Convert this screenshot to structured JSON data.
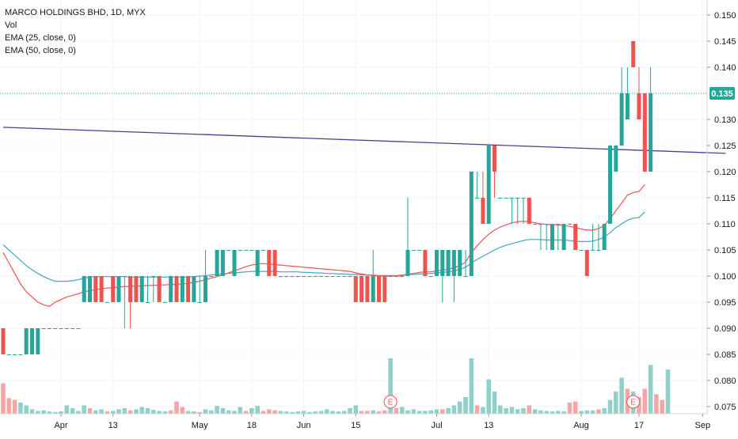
{
  "legend": {
    "title": "MARCO HOLDINGS BHD, 1D, MYX",
    "vol": "Vol",
    "ema25": "EMA (25, close, 0)",
    "ema50": "EMA (50, close, 0)"
  },
  "colors": {
    "up": "#26a69a",
    "down": "#ef5350",
    "vol_up": "#8fd0c8",
    "vol_down": "#f4a7a5",
    "ema25": "#ef5350",
    "ema50": "#3fa7c9",
    "trendline": "#4b3f8f",
    "price_line": "#26a69a",
    "axis_text": "#131722",
    "grid": "#f0f3fa",
    "earnings": "#ef5350"
  },
  "chart_data": {
    "type": "candlestick",
    "symbol": "MARCO HOLDINGS BHD",
    "interval": "1D",
    "exchange": "MYX",
    "y_ticks": [
      "0.150",
      "0.145",
      "0.140",
      "0.135",
      "0.130",
      "0.125",
      "0.120",
      "0.115",
      "0.110",
      "0.105",
      "0.100",
      "0.095",
      "0.090",
      "0.085",
      "0.080",
      "0.075"
    ],
    "ylim": [
      0.074,
      0.152
    ],
    "x_ticks": [
      {
        "label": "Apr",
        "bar": 10
      },
      {
        "label": "13",
        "bar": 19
      },
      {
        "label": "May",
        "bar": 34
      },
      {
        "label": "18",
        "bar": 43
      },
      {
        "label": "Jun",
        "bar": 52
      },
      {
        "label": "15",
        "bar": 61
      },
      {
        "label": "Jul",
        "bar": 75
      },
      {
        "label": "13",
        "bar": 84
      },
      {
        "label": "Aug",
        "bar": 100
      },
      {
        "label": "17",
        "bar": 110
      },
      {
        "label": "Sep",
        "bar": 121
      }
    ],
    "current_price": "0.135",
    "price_line_value": 0.135,
    "earnings_markers": [
      {
        "label": "E",
        "bar": 67
      },
      {
        "label": "E",
        "bar": 109
      }
    ],
    "trendline": {
      "from": {
        "bar": 0,
        "value": 0.1285
      },
      "to": {
        "bar": 125,
        "value": 0.1235
      }
    },
    "candles": [
      [
        0.09,
        0.09,
        0.085,
        0.085
      ],
      [
        0.085,
        0.085,
        0.085,
        0.085
      ],
      [
        0.085,
        0.085,
        0.085,
        0.085
      ],
      [
        0.085,
        0.085,
        0.085,
        0.085
      ],
      [
        0.085,
        0.09,
        0.085,
        0.09
      ],
      [
        0.085,
        0.09,
        0.085,
        0.09
      ],
      [
        0.085,
        0.09,
        0.085,
        0.09
      ],
      [
        0.09,
        0.09,
        0.09,
        0.09
      ],
      [
        0.09,
        0.09,
        0.09,
        0.09
      ],
      [
        0.09,
        0.09,
        0.09,
        0.09
      ],
      [
        0.09,
        0.09,
        0.09,
        0.09
      ],
      [
        0.09,
        0.09,
        0.09,
        0.09
      ],
      [
        0.09,
        0.09,
        0.09,
        0.09
      ],
      [
        0.09,
        0.09,
        0.09,
        0.09
      ],
      [
        0.095,
        0.1,
        0.095,
        0.1
      ],
      [
        0.095,
        0.1,
        0.095,
        0.1
      ],
      [
        0.1,
        0.1,
        0.095,
        0.095
      ],
      [
        0.1,
        0.1,
        0.095,
        0.095
      ],
      [
        0.095,
        0.095,
        0.095,
        0.095
      ],
      [
        0.1,
        0.1,
        0.095,
        0.095
      ],
      [
        0.095,
        0.1,
        0.095,
        0.1
      ],
      [
        0.1,
        0.1,
        0.09,
        0.1
      ],
      [
        0.1,
        0.1,
        0.09,
        0.095
      ],
      [
        0.1,
        0.1,
        0.095,
        0.095
      ],
      [
        0.095,
        0.1,
        0.095,
        0.1
      ],
      [
        0.095,
        0.1,
        0.095,
        0.095
      ],
      [
        0.1,
        0.1,
        0.095,
        0.1
      ],
      [
        0.1,
        0.1,
        0.095,
        0.095
      ],
      [
        0.095,
        0.095,
        0.095,
        0.095
      ],
      [
        0.095,
        0.1,
        0.095,
        0.1
      ],
      [
        0.1,
        0.1,
        0.095,
        0.095
      ],
      [
        0.095,
        0.1,
        0.095,
        0.1
      ],
      [
        0.1,
        0.1,
        0.095,
        0.095
      ],
      [
        0.095,
        0.1,
        0.095,
        0.1
      ],
      [
        0.095,
        0.1,
        0.095,
        0.095
      ],
      [
        0.095,
        0.105,
        0.095,
        0.1
      ],
      [
        0.1,
        0.1,
        0.1,
        0.1
      ],
      [
        0.1,
        0.105,
        0.1,
        0.105
      ],
      [
        0.1,
        0.105,
        0.1,
        0.105
      ],
      [
        0.105,
        0.105,
        0.105,
        0.105
      ],
      [
        0.1,
        0.105,
        0.1,
        0.105
      ],
      [
        0.105,
        0.105,
        0.105,
        0.105
      ],
      [
        0.105,
        0.105,
        0.105,
        0.105
      ],
      [
        0.105,
        0.105,
        0.105,
        0.105
      ],
      [
        0.1,
        0.105,
        0.1,
        0.105
      ],
      [
        0.105,
        0.105,
        0.105,
        0.105
      ],
      [
        0.105,
        0.105,
        0.1,
        0.1
      ],
      [
        0.105,
        0.105,
        0.1,
        0.1
      ],
      [
        0.1,
        0.1,
        0.1,
        0.1
      ],
      [
        0.1,
        0.1,
        0.1,
        0.1
      ],
      [
        0.1,
        0.1,
        0.1,
        0.1
      ],
      [
        0.1,
        0.1,
        0.1,
        0.1
      ],
      [
        0.1,
        0.1,
        0.1,
        0.1
      ],
      [
        0.1,
        0.1,
        0.1,
        0.1
      ],
      [
        0.1,
        0.1,
        0.1,
        0.1
      ],
      [
        0.1,
        0.1,
        0.1,
        0.1
      ],
      [
        0.1,
        0.1,
        0.1,
        0.1
      ],
      [
        0.1,
        0.1,
        0.1,
        0.1
      ],
      [
        0.1,
        0.1,
        0.1,
        0.1
      ],
      [
        0.1,
        0.1,
        0.1,
        0.1
      ],
      [
        0.1,
        0.1,
        0.1,
        0.1
      ],
      [
        0.1,
        0.1,
        0.095,
        0.095
      ],
      [
        0.1,
        0.1,
        0.095,
        0.095
      ],
      [
        0.1,
        0.1,
        0.095,
        0.095
      ],
      [
        0.095,
        0.105,
        0.095,
        0.1
      ],
      [
        0.1,
        0.1,
        0.095,
        0.095
      ],
      [
        0.1,
        0.1,
        0.095,
        0.095
      ],
      [
        0.1,
        0.1,
        0.1,
        0.1
      ],
      [
        0.1,
        0.1,
        0.1,
        0.1
      ],
      [
        0.1,
        0.1,
        0.1,
        0.1
      ],
      [
        0.1,
        0.115,
        0.1,
        0.105
      ],
      [
        0.105,
        0.105,
        0.105,
        0.105
      ],
      [
        0.105,
        0.105,
        0.105,
        0.105
      ],
      [
        0.105,
        0.105,
        0.1,
        0.1
      ],
      [
        0.1,
        0.1,
        0.1,
        0.1
      ],
      [
        0.1,
        0.105,
        0.1,
        0.105
      ],
      [
        0.1,
        0.105,
        0.095,
        0.105
      ],
      [
        0.1,
        0.105,
        0.1,
        0.105
      ],
      [
        0.1,
        0.105,
        0.095,
        0.105
      ],
      [
        0.1,
        0.105,
        0.1,
        0.105
      ],
      [
        0.1,
        0.105,
        0.1,
        0.1
      ],
      [
        0.1,
        0.12,
        0.1,
        0.12
      ],
      [
        0.115,
        0.12,
        0.115,
        0.115
      ],
      [
        0.115,
        0.12,
        0.11,
        0.11
      ],
      [
        0.11,
        0.125,
        0.11,
        0.125
      ],
      [
        0.125,
        0.125,
        0.115,
        0.12
      ],
      [
        0.115,
        0.115,
        0.115,
        0.115
      ],
      [
        0.115,
        0.115,
        0.115,
        0.115
      ],
      [
        0.115,
        0.115,
        0.11,
        0.115
      ],
      [
        0.115,
        0.115,
        0.11,
        0.115
      ],
      [
        0.115,
        0.115,
        0.11,
        0.115
      ],
      [
        0.115,
        0.115,
        0.11,
        0.11
      ],
      [
        0.11,
        0.11,
        0.11,
        0.11
      ],
      [
        0.11,
        0.11,
        0.105,
        0.11
      ],
      [
        0.11,
        0.11,
        0.105,
        0.11
      ],
      [
        0.105,
        0.11,
        0.105,
        0.11
      ],
      [
        0.11,
        0.11,
        0.105,
        0.11
      ],
      [
        0.105,
        0.11,
        0.105,
        0.11
      ],
      [
        0.11,
        0.11,
        0.11,
        0.11
      ],
      [
        0.11,
        0.11,
        0.105,
        0.105
      ],
      [
        0.105,
        0.105,
        0.105,
        0.105
      ],
      [
        0.105,
        0.105,
        0.1,
        0.1
      ],
      [
        0.105,
        0.11,
        0.105,
        0.105
      ],
      [
        0.105,
        0.11,
        0.105,
        0.105
      ],
      [
        0.105,
        0.11,
        0.105,
        0.11
      ],
      [
        0.11,
        0.125,
        0.11,
        0.125
      ],
      [
        0.12,
        0.125,
        0.12,
        0.125
      ],
      [
        0.125,
        0.14,
        0.125,
        0.135
      ],
      [
        0.13,
        0.14,
        0.13,
        0.135
      ],
      [
        0.145,
        0.145,
        0.14,
        0.14
      ],
      [
        0.135,
        0.14,
        0.13,
        0.13
      ],
      [
        0.135,
        0.135,
        0.12,
        0.12
      ],
      [
        0.12,
        0.14,
        0.12,
        0.135
      ]
    ],
    "volumes": [
      [
        0.55,
        0
      ],
      [
        0.28,
        0
      ],
      [
        0.25,
        0
      ],
      [
        0.2,
        1
      ],
      [
        0.15,
        1
      ],
      [
        0.08,
        1
      ],
      [
        0.05,
        1
      ],
      [
        0.06,
        1
      ],
      [
        0.04,
        1
      ],
      [
        0.03,
        1
      ],
      [
        0.04,
        1
      ],
      [
        0.15,
        1
      ],
      [
        0.1,
        1
      ],
      [
        0.05,
        1
      ],
      [
        0.15,
        1
      ],
      [
        0.1,
        0
      ],
      [
        0.06,
        1
      ],
      [
        0.08,
        1
      ],
      [
        0.04,
        0
      ],
      [
        0.05,
        1
      ],
      [
        0.08,
        1
      ],
      [
        0.1,
        1
      ],
      [
        0.06,
        0
      ],
      [
        0.08,
        1
      ],
      [
        0.12,
        1
      ],
      [
        0.1,
        1
      ],
      [
        0.07,
        1
      ],
      [
        0.05,
        1
      ],
      [
        0.04,
        1
      ],
      [
        0.06,
        0
      ],
      [
        0.22,
        0
      ],
      [
        0.12,
        0
      ],
      [
        0.05,
        1
      ],
      [
        0.04,
        1
      ],
      [
        0.03,
        0
      ],
      [
        0.08,
        1
      ],
      [
        0.06,
        1
      ],
      [
        0.14,
        1
      ],
      [
        0.1,
        1
      ],
      [
        0.06,
        1
      ],
      [
        0.05,
        1
      ],
      [
        0.12,
        1
      ],
      [
        0.05,
        0
      ],
      [
        0.1,
        1
      ],
      [
        0.14,
        1
      ],
      [
        0.05,
        0
      ],
      [
        0.08,
        0
      ],
      [
        0.06,
        0
      ],
      [
        0.05,
        1
      ],
      [
        0.04,
        1
      ],
      [
        0.03,
        1
      ],
      [
        0.04,
        1
      ],
      [
        0.05,
        1
      ],
      [
        0.03,
        1
      ],
      [
        0.04,
        1
      ],
      [
        0.05,
        1
      ],
      [
        0.08,
        1
      ],
      [
        0.05,
        1
      ],
      [
        0.04,
        1
      ],
      [
        0.05,
        1
      ],
      [
        0.1,
        1
      ],
      [
        0.15,
        1
      ],
      [
        0.05,
        0
      ],
      [
        0.05,
        0
      ],
      [
        0.06,
        1
      ],
      [
        0.04,
        0
      ],
      [
        0.06,
        0
      ],
      [
        1.0,
        1
      ],
      [
        0.1,
        0
      ],
      [
        0.12,
        1
      ],
      [
        0.06,
        1
      ],
      [
        0.08,
        1
      ],
      [
        0.05,
        1
      ],
      [
        0.05,
        1
      ],
      [
        0.06,
        1
      ],
      [
        0.08,
        1
      ],
      [
        0.08,
        0
      ],
      [
        0.1,
        1
      ],
      [
        0.15,
        1
      ],
      [
        0.22,
        1
      ],
      [
        0.3,
        1
      ],
      [
        1.0,
        1
      ],
      [
        0.15,
        0
      ],
      [
        0.12,
        1
      ],
      [
        0.62,
        1
      ],
      [
        0.4,
        1
      ],
      [
        0.15,
        1
      ],
      [
        0.1,
        1
      ],
      [
        0.12,
        1
      ],
      [
        0.08,
        1
      ],
      [
        0.1,
        1
      ],
      [
        0.15,
        0
      ],
      [
        0.08,
        1
      ],
      [
        0.06,
        1
      ],
      [
        0.05,
        1
      ],
      [
        0.04,
        1
      ],
      [
        0.05,
        1
      ],
      [
        0.04,
        1
      ],
      [
        0.2,
        0
      ],
      [
        0.22,
        0
      ],
      [
        0.05,
        1
      ],
      [
        0.06,
        1
      ],
      [
        0.06,
        1
      ],
      [
        0.08,
        0
      ],
      [
        0.1,
        1
      ],
      [
        0.25,
        1
      ],
      [
        0.4,
        1
      ],
      [
        0.65,
        1
      ],
      [
        0.45,
        0
      ],
      [
        0.4,
        1
      ],
      [
        0.3,
        0
      ],
      [
        0.45,
        0
      ],
      [
        0.88,
        1
      ],
      [
        0.35,
        0
      ],
      [
        0.25,
        0
      ],
      [
        0.8,
        1
      ]
    ],
    "ema25": [
      0.1045,
      0.1025,
      0.1005,
      0.0985,
      0.097,
      0.096,
      0.095,
      0.0945,
      0.0942,
      0.095,
      0.0955,
      0.096,
      0.0963,
      0.0966,
      0.097,
      0.0972,
      0.0974,
      0.0976,
      0.0977,
      0.0978,
      0.0979,
      0.098,
      0.098,
      0.0981,
      0.0981,
      0.0982,
      0.0982,
      0.0983,
      0.0983,
      0.0984,
      0.0984,
      0.0985,
      0.0986,
      0.0988,
      0.099,
      0.0993,
      0.0996,
      0.0999,
      0.1002,
      0.1006,
      0.101,
      0.1014,
      0.1018,
      0.1021,
      0.1023,
      0.1024,
      0.1023,
      0.1022,
      0.1021,
      0.102,
      0.1019,
      0.1018,
      0.1017,
      0.1016,
      0.1015,
      0.1014,
      0.1013,
      0.1012,
      0.1011,
      0.101,
      0.1009,
      0.1006,
      0.1004,
      0.1002,
      0.1001,
      0.1,
      0.1,
      0.1,
      0.1,
      0.1001,
      0.1003,
      0.1005,
      0.1007,
      0.1008,
      0.1008,
      0.101,
      0.1011,
      0.1013,
      0.1016,
      0.102,
      0.1027,
      0.1045,
      0.1058,
      0.107,
      0.108,
      0.1088,
      0.1094,
      0.1098,
      0.1102,
      0.1104,
      0.1105,
      0.1104,
      0.1102,
      0.11,
      0.1099,
      0.1098,
      0.1098,
      0.1097,
      0.1095,
      0.1093,
      0.109,
      0.1088,
      0.1088,
      0.1091,
      0.1097,
      0.111,
      0.1125,
      0.114,
      0.1155,
      0.116,
      0.1162,
      0.1175
    ],
    "ema50": [
      0.106,
      0.105,
      0.104,
      0.103,
      0.102,
      0.1012,
      0.1005,
      0.0999,
      0.0994,
      0.099,
      0.099,
      0.099,
      0.0991,
      0.0993,
      0.0996,
      0.0998,
      0.0999,
      0.0999,
      0.0999,
      0.0999,
      0.0999,
      0.0999,
      0.0998,
      0.0998,
      0.0998,
      0.0998,
      0.0998,
      0.0998,
      0.0998,
      0.0998,
      0.0998,
      0.0998,
      0.0998,
      0.0999,
      0.1,
      0.1001,
      0.1002,
      0.1003,
      0.1004,
      0.1005,
      0.1006,
      0.1007,
      0.1008,
      0.1009,
      0.1009,
      0.1009,
      0.1009,
      0.1009,
      0.1008,
      0.1008,
      0.1008,
      0.1008,
      0.1007,
      0.1007,
      0.1006,
      0.1006,
      0.1005,
      0.1005,
      0.1004,
      0.1004,
      0.1003,
      0.1003,
      0.1002,
      0.1002,
      0.1002,
      0.1001,
      0.1001,
      0.1001,
      0.1001,
      0.1002,
      0.1003,
      0.1003,
      0.1004,
      0.1004,
      0.1005,
      0.1006,
      0.1007,
      0.1008,
      0.101,
      0.1013,
      0.1017,
      0.1025,
      0.1032,
      0.1038,
      0.1044,
      0.105,
      0.1055,
      0.1059,
      0.1062,
      0.1065,
      0.1068,
      0.107,
      0.107,
      0.107,
      0.1069,
      0.1069,
      0.1069,
      0.1069,
      0.1068,
      0.1067,
      0.1066,
      0.1066,
      0.1067,
      0.107,
      0.1075,
      0.1083,
      0.1093,
      0.11,
      0.1107,
      0.1111,
      0.1112,
      0.1123
    ]
  }
}
